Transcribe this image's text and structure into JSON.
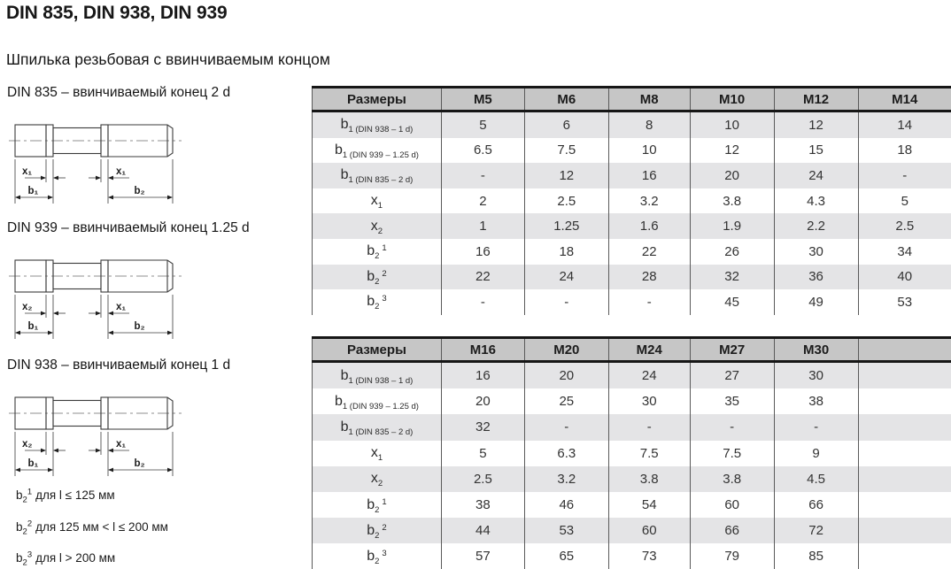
{
  "page": {
    "title": "DIN 835, DIN 938, DIN 939",
    "subtitle": "Шпилька резьбовая с ввинчиваемым концом"
  },
  "drawings": [
    {
      "label": "DIN 835 – ввинчиваемый конец 2 d",
      "dim_x_left": "x₁",
      "dim_x_right": "x₁",
      "dim_b1": "b₁",
      "dim_b2": "b₂"
    },
    {
      "label": "DIN 939 – ввинчиваемый конец 1.25 d",
      "dim_x_left": "x₂",
      "dim_x_right": "x₁",
      "dim_b1": "b₁",
      "dim_b2": "b₂"
    },
    {
      "label": "DIN 938 – ввинчиваемый конец 1 d",
      "dim_x_left": "x₂",
      "dim_x_right": "x₁",
      "dim_b1": "b₁",
      "dim_b2": "b₂"
    }
  ],
  "tables": [
    {
      "header": [
        "Размеры",
        "M5",
        "M6",
        "M8",
        "M10",
        "M12",
        "M14"
      ],
      "rows": [
        {
          "label_base": "b",
          "label_sub": "1 (DIN 938 – 1 d)",
          "label_sup": "",
          "values": [
            "5",
            "6",
            "8",
            "10",
            "12",
            "14"
          ]
        },
        {
          "label_base": "b",
          "label_sub": "1 (DIN 939 – 1.25 d)",
          "label_sup": "",
          "values": [
            "6.5",
            "7.5",
            "10",
            "12",
            "15",
            "18"
          ]
        },
        {
          "label_base": "b",
          "label_sub": "1 (DIN 835 – 2 d)",
          "label_sup": "",
          "values": [
            "-",
            "12",
            "16",
            "20",
            "24",
            "-"
          ]
        },
        {
          "label_base": "x",
          "label_sub": "1",
          "label_sup": "",
          "values": [
            "2",
            "2.5",
            "3.2",
            "3.8",
            "4.3",
            "5"
          ]
        },
        {
          "label_base": "x",
          "label_sub": "2",
          "label_sup": "",
          "values": [
            "1",
            "1.25",
            "1.6",
            "1.9",
            "2.2",
            "2.5"
          ]
        },
        {
          "label_base": "b",
          "label_sub": "2",
          "label_sup": "1",
          "values": [
            "16",
            "18",
            "22",
            "26",
            "30",
            "34"
          ]
        },
        {
          "label_base": "b",
          "label_sub": "2",
          "label_sup": "2",
          "values": [
            "22",
            "24",
            "28",
            "32",
            "36",
            "40"
          ]
        },
        {
          "label_base": "b",
          "label_sub": "2",
          "label_sup": "3",
          "values": [
            "-",
            "-",
            "-",
            "45",
            "49",
            "53"
          ]
        }
      ]
    },
    {
      "header": [
        "Размеры",
        "M16",
        "M20",
        "M24",
        "M27",
        "M30",
        ""
      ],
      "rows": [
        {
          "label_base": "b",
          "label_sub": "1 (DIN 938 – 1 d)",
          "label_sup": "",
          "values": [
            "16",
            "20",
            "24",
            "27",
            "30",
            ""
          ]
        },
        {
          "label_base": "b",
          "label_sub": "1 (DIN 939 – 1.25 d)",
          "label_sup": "",
          "values": [
            "20",
            "25",
            "30",
            "35",
            "38",
            ""
          ]
        },
        {
          "label_base": "b",
          "label_sub": "1 (DIN 835 – 2 d)",
          "label_sup": "",
          "values": [
            "32",
            "-",
            "-",
            "-",
            "-",
            ""
          ]
        },
        {
          "label_base": "x",
          "label_sub": "1",
          "label_sup": "",
          "values": [
            "5",
            "6.3",
            "7.5",
            "7.5",
            "9",
            ""
          ]
        },
        {
          "label_base": "x",
          "label_sub": "2",
          "label_sup": "",
          "values": [
            "2.5",
            "3.2",
            "3.8",
            "3.8",
            "4.5",
            ""
          ]
        },
        {
          "label_base": "b",
          "label_sub": "2",
          "label_sup": "1",
          "values": [
            "38",
            "46",
            "54",
            "60",
            "66",
            ""
          ]
        },
        {
          "label_base": "b",
          "label_sub": "2",
          "label_sup": "2",
          "values": [
            "44",
            "53",
            "60",
            "66",
            "72",
            ""
          ]
        },
        {
          "label_base": "b",
          "label_sub": "2",
          "label_sup": "3",
          "values": [
            "57",
            "65",
            "73",
            "79",
            "85",
            ""
          ]
        }
      ]
    }
  ],
  "footnotes": [
    {
      "label_base": "b",
      "label_sub": "2",
      "label_sup": "1",
      "text": "для l ≤ 125 мм"
    },
    {
      "label_base": "b",
      "label_sub": "2",
      "label_sup": "2",
      "text": "для 125 мм < l ≤ 200 мм"
    },
    {
      "label_base": "b",
      "label_sub": "2",
      "label_sup": "3",
      "text": "для l > 200 мм"
    }
  ],
  "colors": {
    "header_bg": "#c6c6c6",
    "row_shaded": "#e4e4e6",
    "header_border": "#161616",
    "grid_line": "#5a5a5a"
  }
}
